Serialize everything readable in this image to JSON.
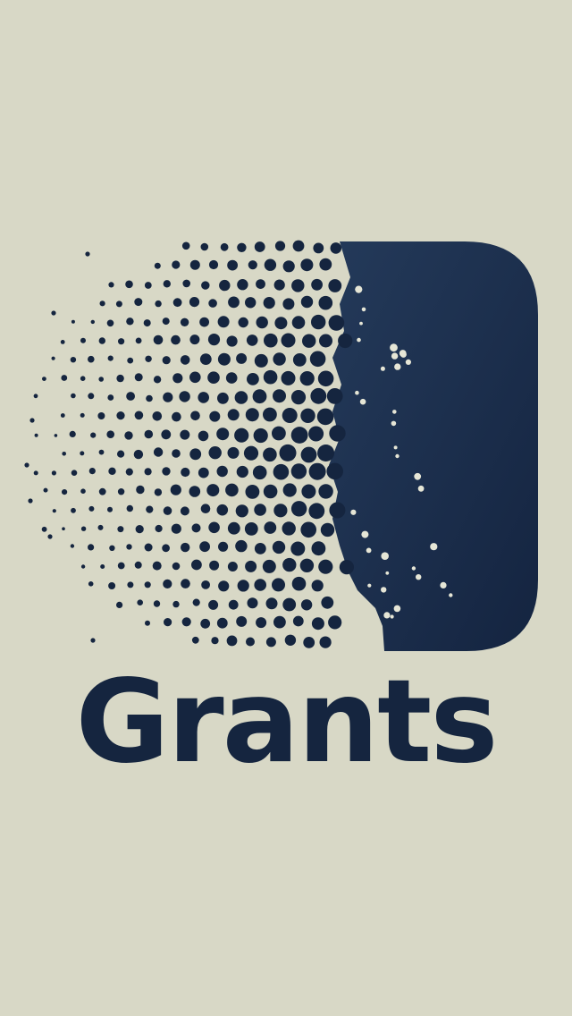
{
  "app": {
    "name": "Grants"
  },
  "colors": {
    "background": "#d8d8c6",
    "ink": "#15253f",
    "ink_light": "#243a5a",
    "speckle": "#e6e6d6"
  },
  "icons": {
    "logo": "halftone-rounded-square-icon"
  }
}
